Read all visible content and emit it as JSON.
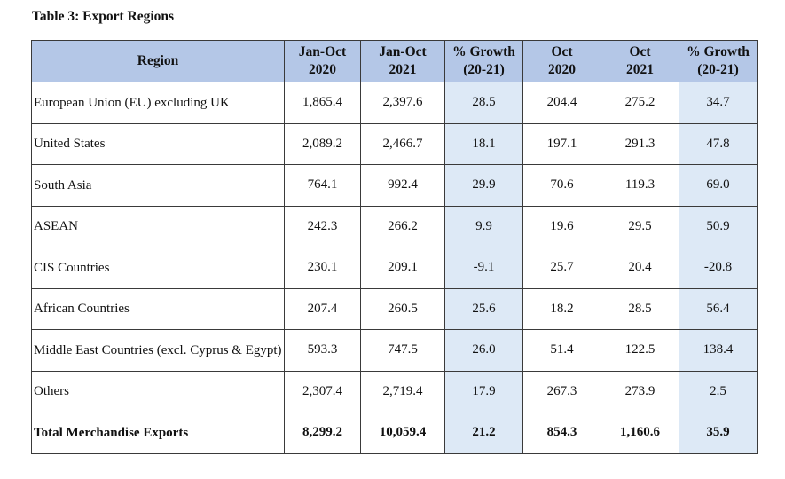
{
  "caption": "Table 3: Export Regions",
  "headers": {
    "region": "Region",
    "col1": [
      "Jan-Oct",
      "2020"
    ],
    "col2": [
      "Jan-Oct",
      "2021"
    ],
    "col3": [
      "% Growth",
      "(20-21)"
    ],
    "col4": [
      "Oct",
      "2020"
    ],
    "col5": [
      "Oct",
      "2021"
    ],
    "col6": [
      "% Growth",
      "(20-21)"
    ]
  },
  "rows": [
    {
      "region": "European Union (EU) excluding UK",
      "v": [
        "1,865.4",
        "2,397.6",
        "28.5",
        "204.4",
        "275.2",
        "34.7"
      ]
    },
    {
      "region": "United States",
      "v": [
        "2,089.2",
        "2,466.7",
        "18.1",
        "197.1",
        "291.3",
        "47.8"
      ]
    },
    {
      "region": "South Asia",
      "v": [
        "764.1",
        "992.4",
        "29.9",
        "70.6",
        "119.3",
        "69.0"
      ]
    },
    {
      "region": "ASEAN",
      "v": [
        "242.3",
        "266.2",
        "9.9",
        "19.6",
        "29.5",
        "50.9"
      ]
    },
    {
      "region": "CIS Countries",
      "v": [
        "230.1",
        "209.1",
        "-9.1",
        "25.7",
        "20.4",
        "-20.8"
      ]
    },
    {
      "region": "African Countries",
      "v": [
        "207.4",
        "260.5",
        "25.6",
        "18.2",
        "28.5",
        "56.4"
      ]
    },
    {
      "region": "Middle East Countries (excl. Cyprus & Egypt)",
      "v": [
        "593.3",
        "747.5",
        "26.0",
        "51.4",
        "122.5",
        "138.4"
      ]
    },
    {
      "region": "Others",
      "v": [
        "2,307.4",
        "2,719.4",
        "17.9",
        "267.3",
        "273.9",
        "2.5"
      ]
    },
    {
      "region": "Total Merchandise Exports",
      "v": [
        "8,299.2",
        "10,059.4",
        "21.2",
        "854.3",
        "1,160.6",
        "35.9"
      ]
    }
  ],
  "colors": {
    "header_bg": "#b4c7e7",
    "growth_bg": "#dde9f6",
    "border": "#3a3a3a"
  }
}
